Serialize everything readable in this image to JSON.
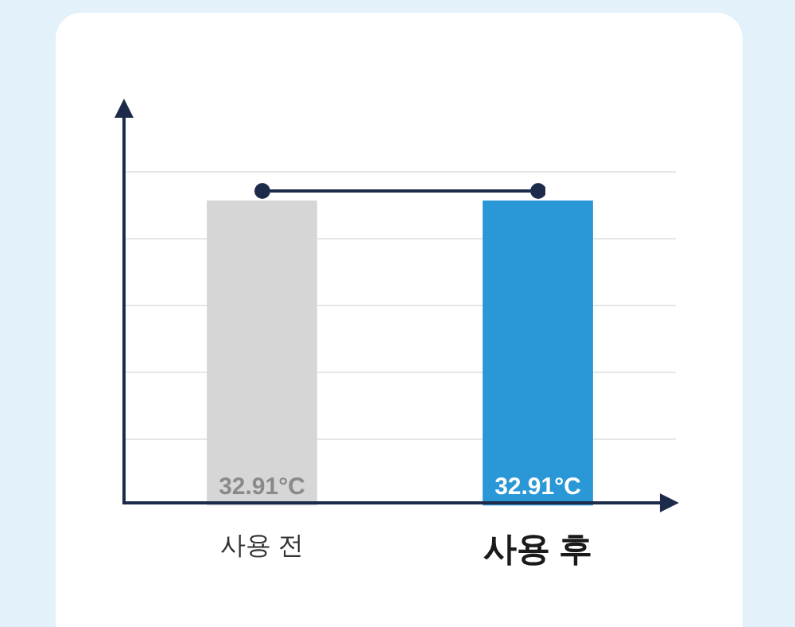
{
  "chart_data": {
    "type": "bar",
    "categories": [
      "사용 전",
      "사용 후"
    ],
    "series": [
      {
        "colors": [
          "#d6d6d6",
          "#2a97d6"
        ],
        "values": [
          32.91,
          32.91
        ],
        "value_labels": [
          "32.91°C",
          "32.91°C"
        ]
      }
    ],
    "grid": "y",
    "legend": false,
    "tick_labels": "x"
  }
}
